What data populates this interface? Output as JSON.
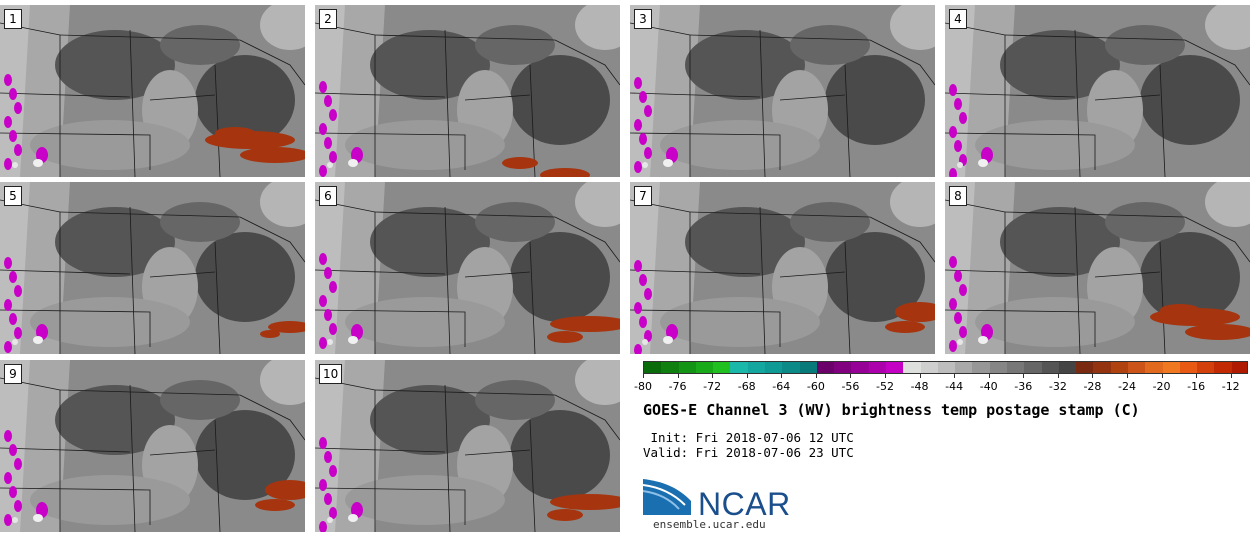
{
  "figure": {
    "title": "GOES-E Channel 3 (WV) brightness temp postage stamp (C)",
    "init_line": "Init: Fri 2018-07-06 12 UTC",
    "valid_line": "Valid: Fri 2018-07-06 23 UTC",
    "logo_text": "NCAR",
    "logo_url": "ensemble.ucar.edu"
  },
  "panels": [
    {
      "label": "1",
      "cold": "west",
      "warm": "southeast-strong"
    },
    {
      "label": "2",
      "cold": "west",
      "warm": "south-weak"
    },
    {
      "label": "3",
      "cold": "west",
      "warm": "none"
    },
    {
      "label": "4",
      "cold": "west",
      "warm": "none"
    },
    {
      "label": "5",
      "cold": "west",
      "warm": "east-weak"
    },
    {
      "label": "6",
      "cold": "west",
      "warm": "southeast"
    },
    {
      "label": "7",
      "cold": "west",
      "warm": "east"
    },
    {
      "label": "8",
      "cold": "west",
      "warm": "southeast-strong"
    },
    {
      "label": "9",
      "cold": "west",
      "warm": "east"
    },
    {
      "label": "10",
      "cold": "west",
      "warm": "southeast"
    }
  ],
  "chart_data": {
    "type": "heatmap",
    "title": "GOES-E Channel 3 (WV) brightness temp postage stamp (C)",
    "units": "C",
    "member_count": 10,
    "colorbar": {
      "range": [
        -80,
        -10
      ],
      "bin_width": 2,
      "tick_labels": [
        "-80",
        "-76",
        "-72",
        "-68",
        "-64",
        "-60",
        "-56",
        "-52",
        "-48",
        "-44",
        "-40",
        "-36",
        "-32",
        "-28",
        "-24",
        "-20",
        "-16",
        "-12"
      ],
      "colors": [
        "#0a6b0a",
        "#0f7f0f",
        "#149414",
        "#19aa19",
        "#20c020",
        "#19b8a8",
        "#14a7a0",
        "#109a96",
        "#0c8a88",
        "#087a7a",
        "#6b006b",
        "#800080",
        "#960096",
        "#ab00ab",
        "#c400c4",
        "#dde0dd",
        "#cfcfcf",
        "#bdbdbd",
        "#a9a9a9",
        "#979797",
        "#868686",
        "#777777",
        "#666666",
        "#555555",
        "#444444",
        "#7a2a10",
        "#93330f",
        "#b0420f",
        "#cc5418",
        "#e26a1e",
        "#f07820",
        "#e85a14",
        "#d4400c",
        "#c22a04",
        "#b01a00"
      ]
    }
  }
}
